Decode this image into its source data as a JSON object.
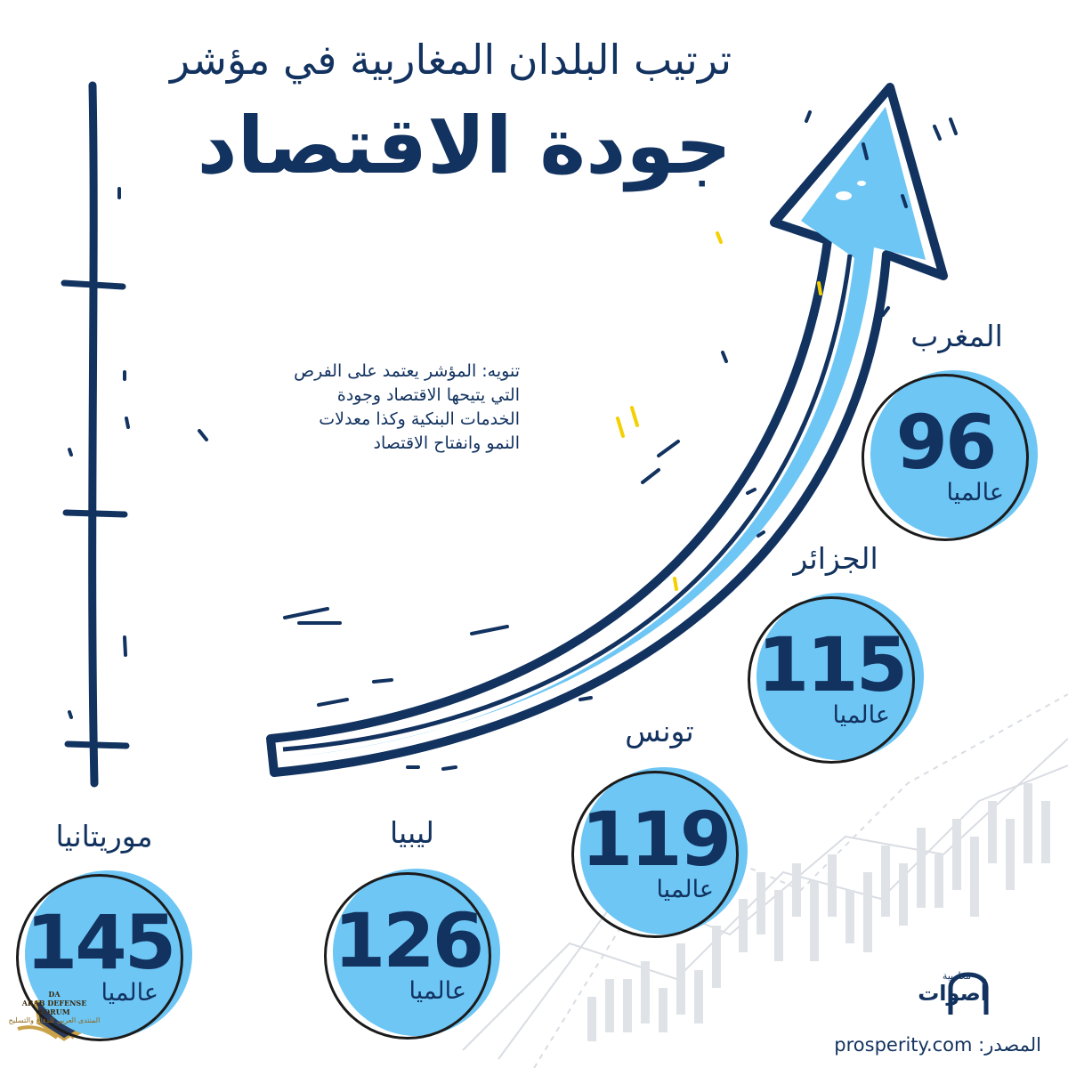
{
  "header": {
    "subtitle": "ترتيب البلدان المغاربية في مؤشر",
    "title": "جودة الاقتصاد"
  },
  "note": {
    "text": "تنويه: المؤشر يعتمد على الفرص التي يتيحها الاقتصاد وجودة الخدمات البنكية وكذا معدلات النمو وانفتاح الاقتصاد"
  },
  "rankings": [
    {
      "country": "المغرب",
      "rank": "96",
      "unit": "عالميا"
    },
    {
      "country": "الجزائر",
      "rank": "115",
      "unit": "عالميا"
    },
    {
      "country": "تونس",
      "rank": "119",
      "unit": "عالميا"
    },
    {
      "country": "ليبيا",
      "rank": "126",
      "unit": "عالميا"
    },
    {
      "country": "موريتانيا",
      "rank": "145",
      "unit": "عالميا"
    }
  ],
  "footer": {
    "source_label": "المصدر:",
    "source": "prosperity.com",
    "logo_top": "مغاربية",
    "logo_word": "أصوات"
  },
  "watermark": {
    "name_en": "ARAB DEFENSE FORUM",
    "name_ar": "المنتدى العربي للدفاع والتسليح",
    "initials": "DA"
  },
  "colors": {
    "navy": "#12325f",
    "sky_blue": "#6ec6f5",
    "accent_yellow": "#f5d000"
  }
}
